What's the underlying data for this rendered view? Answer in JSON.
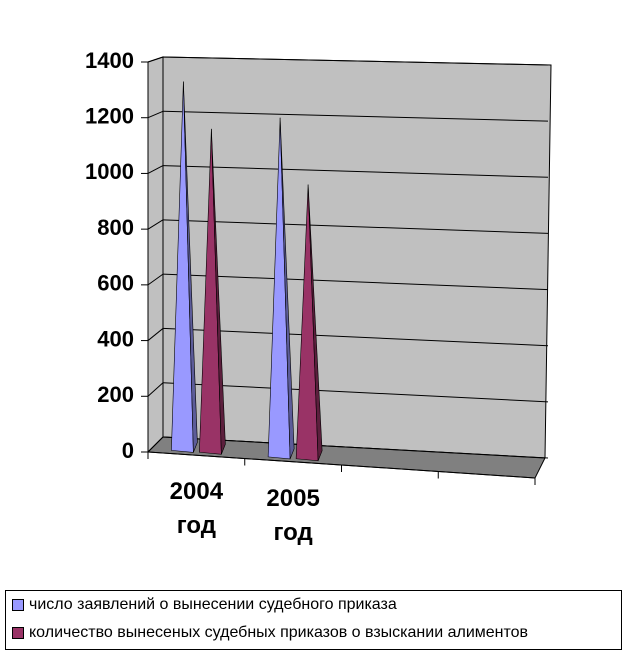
{
  "chart_data": {
    "type": "pyramid",
    "categories": [
      "2004 год",
      "2005 год",
      null,
      null
    ],
    "series": [
      {
        "name": "число заявлений о вынесении судебного приказа",
        "color": "#9999ff",
        "values": [
          1330,
          1200,
          null,
          null
        ]
      },
      {
        "name": "количество вынесеных судебных приказов о взыскании алиментов",
        "color": "#993366",
        "values": [
          1160,
          960,
          null,
          null
        ]
      }
    ],
    "ylim": [
      0,
      1400
    ],
    "yticks": [
      0,
      200,
      400,
      600,
      800,
      1000,
      1200,
      1400
    ],
    "grid": true,
    "legend": "bottom"
  }
}
